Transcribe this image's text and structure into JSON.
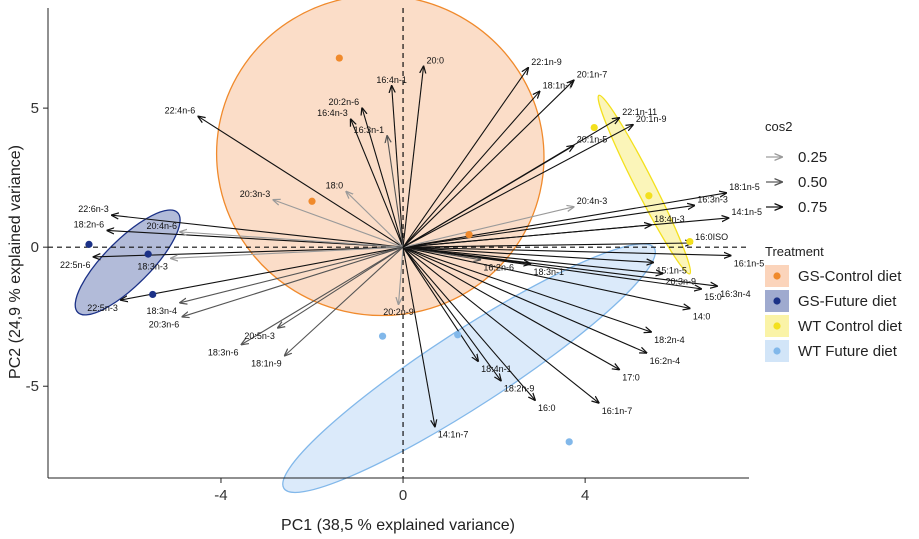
{
  "chart_data": {
    "type": "scatter",
    "subtype": "pca-biplot",
    "xlabel": "PC1 (38,5 % explained variance)",
    "ylabel": "PC2 (24,9 % explained variance)",
    "xlim": [
      -7.8,
      7.6
    ],
    "ylim": [
      -8.3,
      8.6
    ],
    "x_ticks": [
      -4,
      0,
      4
    ],
    "y_ticks": [
      -5,
      0,
      5
    ],
    "reference_lines": {
      "x": 0,
      "y": 0,
      "style": "dashed"
    },
    "grid": false,
    "legend_position": "right",
    "legends": {
      "cos2": {
        "title": "cos2",
        "entries": [
          {
            "label": "0.25",
            "value": 0.25
          },
          {
            "label": "0.50",
            "value": 0.5
          },
          {
            "label": "0.75",
            "value": 0.75
          }
        ]
      },
      "treatment": {
        "title": "Treatment",
        "entries": [
          {
            "label": "GS-Control diet",
            "color": "#f08a2c",
            "fill": "#f9c6a4"
          },
          {
            "label": "GS-Future diet",
            "color": "#1b3187",
            "fill": "#7f8dbf"
          },
          {
            "label": "WT Control diet",
            "color": "#f3e01e",
            "fill": "#f8ef8a"
          },
          {
            "label": "WT Future diet",
            "color": "#82b8ea",
            "fill": "#c3dcf6"
          }
        ]
      }
    },
    "groups": [
      {
        "name": "GS-Control diet",
        "color": "#f08a2c",
        "fill": "#f9c6a4",
        "points": [
          [
            -1.4,
            6.8
          ],
          [
            -2.0,
            1.65
          ],
          [
            1.45,
            0.45
          ]
        ],
        "ellipse": {
          "cx": -0.5,
          "cy": 3.3,
          "rx": 3.6,
          "ry": 5.75,
          "angle": 13
        }
      },
      {
        "name": "GS-Future diet",
        "color": "#1b3187",
        "fill": "#7f8dbf",
        "points": [
          [
            -6.9,
            0.1
          ],
          [
            -5.6,
            -0.25
          ],
          [
            -5.5,
            -1.7
          ]
        ],
        "ellipse": {
          "cx": -6.05,
          "cy": -0.55,
          "rx": 1.55,
          "ry": 0.82,
          "angle": -45
        }
      },
      {
        "name": "WT Control diet",
        "color": "#f3e01e",
        "fill": "#f8ef8a",
        "points": [
          [
            4.2,
            4.3
          ],
          [
            5.4,
            1.85
          ],
          [
            6.3,
            0.2
          ]
        ],
        "ellipse": {
          "cx": 5.3,
          "cy": 2.25,
          "rx": 0.2,
          "ry": 3.6,
          "angle": -27
        }
      },
      {
        "name": "WT Future diet",
        "color": "#82b8ea",
        "fill": "#c3dcf6",
        "points": [
          [
            -0.45,
            -3.2
          ],
          [
            1.2,
            -3.15
          ],
          [
            3.65,
            -7.0
          ]
        ],
        "ellipse": {
          "cx": 1.45,
          "cy": -4.35,
          "rx": 4.85,
          "ry": 1.35,
          "angle": -33
        }
      }
    ],
    "variables": [
      {
        "label": "20:0",
        "x": 0.45,
        "y": 6.5,
        "cos2": 0.75
      },
      {
        "label": "16:4n-1",
        "x": -0.25,
        "y": 5.8,
        "cos2": 0.75
      },
      {
        "label": "20:2n-6",
        "x": -0.9,
        "y": 5.0,
        "cos2": 0.75
      },
      {
        "label": "16:4n-3",
        "x": -1.15,
        "y": 4.6,
        "cos2": 0.75
      },
      {
        "label": "16:3n-1",
        "x": -0.35,
        "y": 4.0,
        "cos2": 0.6
      },
      {
        "label": "22:4n-6",
        "x": -4.5,
        "y": 4.7,
        "cos2": 0.75
      },
      {
        "label": "18:0",
        "x": -1.25,
        "y": 2.0,
        "cos2": 0.4
      },
      {
        "label": "20:3n-3",
        "x": -2.85,
        "y": 1.7,
        "cos2": 0.4
      },
      {
        "label": "22:6n-3",
        "x": -6.4,
        "y": 1.15,
        "cos2": 0.75
      },
      {
        "label": "18:2n-6",
        "x": -6.5,
        "y": 0.6,
        "cos2": 0.75
      },
      {
        "label": "20:4n-6",
        "x": -4.9,
        "y": 0.55,
        "cos2": 0.4
      },
      {
        "label": "22:5n-6",
        "x": -6.8,
        "y": -0.35,
        "cos2": 0.75
      },
      {
        "label": "18:3n-3",
        "x": -5.1,
        "y": -0.4,
        "cos2": 0.4
      },
      {
        "label": "22:5n-3",
        "x": -6.2,
        "y": -1.9,
        "cos2": 0.75
      },
      {
        "label": "18:3n-4",
        "x": -4.9,
        "y": -2.0,
        "cos2": 0.5
      },
      {
        "label": "20:3n-6",
        "x": -4.85,
        "y": -2.5,
        "cos2": 0.5
      },
      {
        "label": "20:5n-3",
        "x": -2.75,
        "y": -2.9,
        "cos2": 0.5
      },
      {
        "label": "18:3n-6",
        "x": -3.55,
        "y": -3.5,
        "cos2": 0.5
      },
      {
        "label": "18:1n-9",
        "x": -2.6,
        "y": -3.9,
        "cos2": 0.5
      },
      {
        "label": "20:2n-9",
        "x": -0.1,
        "y": -2.05,
        "cos2": 0.4
      },
      {
        "label": "18:4n-1",
        "x": 1.65,
        "y": -4.1,
        "cos2": 0.75
      },
      {
        "label": "14:1n-7",
        "x": 0.7,
        "y": -6.45,
        "cos2": 0.75
      },
      {
        "label": "18:2n-9",
        "x": 2.15,
        "y": -4.8,
        "cos2": 0.75
      },
      {
        "label": "16:0",
        "x": 2.9,
        "y": -5.5,
        "cos2": 0.75
      },
      {
        "label": "16:1n-7",
        "x": 4.3,
        "y": -5.6,
        "cos2": 0.75
      },
      {
        "label": "17:0",
        "x": 4.75,
        "y": -4.4,
        "cos2": 0.75
      },
      {
        "label": "16:2n-4",
        "x": 5.35,
        "y": -3.8,
        "cos2": 0.75
      },
      {
        "label": "18:2n-4",
        "x": 5.45,
        "y": -3.05,
        "cos2": 0.75
      },
      {
        "label": "14:0",
        "x": 6.3,
        "y": -2.2,
        "cos2": 0.75
      },
      {
        "label": "15:0",
        "x": 6.55,
        "y": -1.5,
        "cos2": 0.75
      },
      {
        "label": "16:3n-4",
        "x": 6.9,
        "y": -1.4,
        "cos2": 0.75
      },
      {
        "label": "20:3n-9",
        "x": 5.7,
        "y": -0.95,
        "cos2": 0.75
      },
      {
        "label": "15:1n-5",
        "x": 5.5,
        "y": -0.55,
        "cos2": 0.75
      },
      {
        "label": "16:2n-6",
        "x": 1.7,
        "y": -0.45,
        "cos2": 0.6
      },
      {
        "label": "18:3n-1",
        "x": 2.8,
        "y": -0.6,
        "cos2": 0.75
      },
      {
        "label": "16:1n-5",
        "x": 7.2,
        "y": -0.3,
        "cos2": 0.75
      },
      {
        "label": "16:0ISO",
        "x": 6.35,
        "y": 0.15,
        "cos2": 0.75
      },
      {
        "label": "14:1n-5",
        "x": 7.15,
        "y": 1.05,
        "cos2": 0.75
      },
      {
        "label": "18:4n-3",
        "x": 5.45,
        "y": 0.8,
        "cos2": 0.75
      },
      {
        "label": "16:3n-3",
        "x": 6.4,
        "y": 1.5,
        "cos2": 0.75
      },
      {
        "label": "18:1n-5",
        "x": 7.1,
        "y": 1.95,
        "cos2": 0.75
      },
      {
        "label": "20:4n-3",
        "x": 3.75,
        "y": 1.45,
        "cos2": 0.4
      },
      {
        "label": "20:1n-9",
        "x": 5.05,
        "y": 4.4,
        "cos2": 0.75
      },
      {
        "label": "20:1n-5",
        "x": 3.75,
        "y": 3.65,
        "cos2": 0.75
      },
      {
        "label": "22:1n-11",
        "x": 4.75,
        "y": 4.65,
        "cos2": 0.75
      },
      {
        "label": "20:1n-7",
        "x": 3.75,
        "y": 6.0,
        "cos2": 0.75
      },
      {
        "label": "18:1n-7",
        "x": 3.0,
        "y": 5.6,
        "cos2": 0.75
      },
      {
        "label": "22:1n-9",
        "x": 2.75,
        "y": 6.45,
        "cos2": 0.75
      }
    ]
  }
}
